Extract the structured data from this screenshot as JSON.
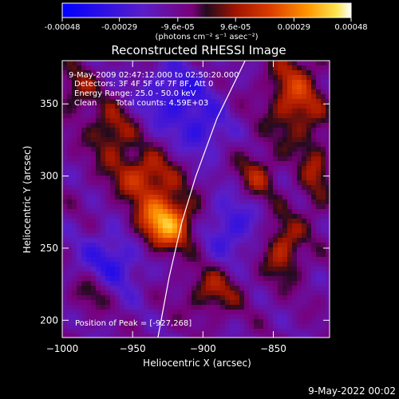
{
  "colorbar": {
    "tick_labels": [
      "-0.00048",
      "-0.00029",
      "-9.6e-05",
      "9.6e-05",
      "0.00029",
      "0.00048"
    ],
    "tick_values": [
      -0.00048,
      -0.00029,
      -9.6e-05,
      9.6e-05,
      0.00029,
      0.00048
    ],
    "range": [
      -0.00048,
      0.00048
    ],
    "unit_label": "(photons cm⁻² s⁻¹ asec⁻²)"
  },
  "title": "Reconstructed RHESSI Image",
  "info": {
    "time_range": "9-May-2009 02:47:12.000 to 02:50:20.000",
    "detectors": "Detectors: 3F 4F 5F 6F 7F 8F, Att 0",
    "energy": "Energy Range: 25.0 - 50.0 keV",
    "method": "Clean",
    "counts": "Total counts: 4.59E+03"
  },
  "peak": {
    "label": "Position of Peak = [-927,268]",
    "x": -927,
    "y": 268
  },
  "axes": {
    "xlabel": "Heliocentric X (arcsec)",
    "ylabel": "Heliocentric Y (arcsec)",
    "xlim": [
      -1000,
      -810
    ],
    "ylim": [
      188,
      380
    ],
    "xticks": [
      -1000,
      -950,
      -900,
      -850
    ],
    "xtick_labels": [
      "−1000",
      "−950",
      "−900",
      "−850"
    ],
    "yticks": [
      200,
      250,
      300,
      350
    ],
    "ytick_labels": [
      "200",
      "250",
      "300",
      "350"
    ]
  },
  "limb": [
    [
      -932,
      188
    ],
    [
      -924,
      230
    ],
    [
      -915,
      268
    ],
    [
      -905,
      300
    ],
    [
      -890,
      340
    ],
    [
      -870,
      380
    ]
  ],
  "image": {
    "sources": [
      {
        "x": -927,
        "y": 268,
        "amp": 1.0,
        "sx": 14,
        "sy": 13
      },
      {
        "x": -942,
        "y": 300,
        "amp": 0.55,
        "sx": 16,
        "sy": 12
      },
      {
        "x": -965,
        "y": 330,
        "amp": 0.45,
        "sx": 12,
        "sy": 14
      },
      {
        "x": -835,
        "y": 355,
        "amp": 0.55,
        "sx": 14,
        "sy": 22
      },
      {
        "x": -843,
        "y": 250,
        "amp": 0.5,
        "sx": 10,
        "sy": 16
      },
      {
        "x": -862,
        "y": 300,
        "amp": 0.4,
        "sx": 10,
        "sy": 12
      },
      {
        "x": -893,
        "y": 220,
        "amp": 0.4,
        "sx": 14,
        "sy": 12
      },
      {
        "x": -978,
        "y": 220,
        "amp": 0.35,
        "sx": 10,
        "sy": 10
      },
      {
        "x": -990,
        "y": 360,
        "amp": 0.35,
        "sx": 10,
        "sy": 12
      },
      {
        "x": -820,
        "y": 300,
        "amp": 0.35,
        "sx": 8,
        "sy": 20
      },
      {
        "x": -920,
        "y": 355,
        "amp": -0.45,
        "sx": 18,
        "sy": 16
      },
      {
        "x": -965,
        "y": 240,
        "amp": -0.45,
        "sx": 16,
        "sy": 16
      },
      {
        "x": -880,
        "y": 265,
        "amp": -0.4,
        "sx": 14,
        "sy": 16
      },
      {
        "x": -900,
        "y": 330,
        "amp": -0.35,
        "sx": 12,
        "sy": 12
      }
    ]
  },
  "footer": "9-May-2022 00:02"
}
